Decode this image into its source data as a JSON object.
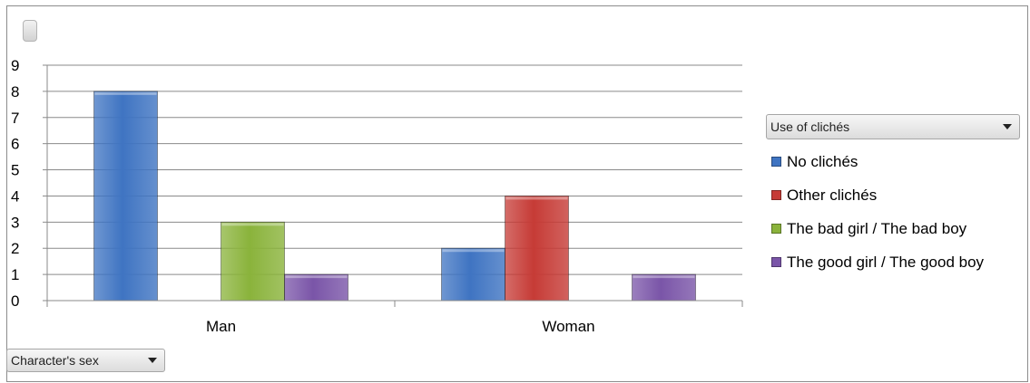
{
  "chart_data": {
    "type": "bar",
    "categories": [
      "Man",
      "Woman"
    ],
    "series": [
      {
        "name": "No clichés",
        "values": [
          8,
          2
        ],
        "color": "#3f74c2"
      },
      {
        "name": "Other clichés",
        "values": [
          0,
          4
        ],
        "color": "#c63b36"
      },
      {
        "name": "The bad girl / The bad boy",
        "values": [
          3,
          0
        ],
        "color": "#8ab33b"
      },
      {
        "name": "The good girl / The good boy",
        "values": [
          1,
          1
        ],
        "color": "#7a55a8"
      }
    ],
    "title": "",
    "xlabel": "",
    "ylabel": "",
    "ylim": [
      0,
      9
    ],
    "yticks": [
      "0",
      "1",
      "2",
      "3",
      "4",
      "5",
      "6",
      "7",
      "8",
      "9"
    ],
    "grid": true,
    "legend_position": "right"
  },
  "legend": {
    "field_label": "Use of clichés"
  },
  "axis_field": {
    "label": "Character's sex"
  }
}
